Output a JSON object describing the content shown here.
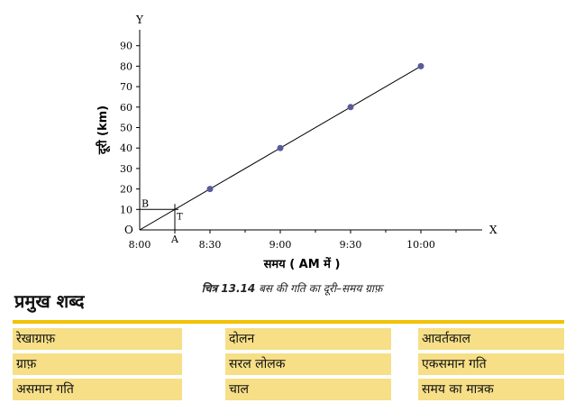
{
  "chart_data": {
    "type": "line",
    "x_labels": [
      "8:00",
      "8:30",
      "9:00",
      "9:30",
      "10:00"
    ],
    "x": [
      "8:30",
      "9:00",
      "9:30",
      "10:00"
    ],
    "y": [
      20,
      40,
      60,
      80
    ],
    "y_ticks": [
      0,
      10,
      20,
      30,
      40,
      50,
      60,
      70,
      80,
      90
    ],
    "ylim": [
      0,
      90
    ],
    "xlabel": "समय ( AM में )",
    "ylabel": "दूरी (km)",
    "x_axis_letter": "X",
    "y_axis_letter": "Y",
    "origin_label": "O",
    "marker_labels": {
      "A": "A",
      "B": "B",
      "T": "T"
    },
    "grid": false
  },
  "caption": {
    "figure_number": "चित्र 13.14",
    "text": "बस की गति का दूरी–समय ग्राफ़"
  },
  "keywords": {
    "heading": "प्रमुख शब्द",
    "rows": [
      [
        "रेखाग्राफ़",
        "दोलन",
        "आवर्तकाल"
      ],
      [
        "ग्राफ़",
        "सरल लोलक",
        "एकसमान गति"
      ],
      [
        "असमान गति",
        "चाल",
        "समय का मात्रक"
      ]
    ],
    "accent_color": "#f0c200",
    "cell_color": "#f6df86"
  }
}
